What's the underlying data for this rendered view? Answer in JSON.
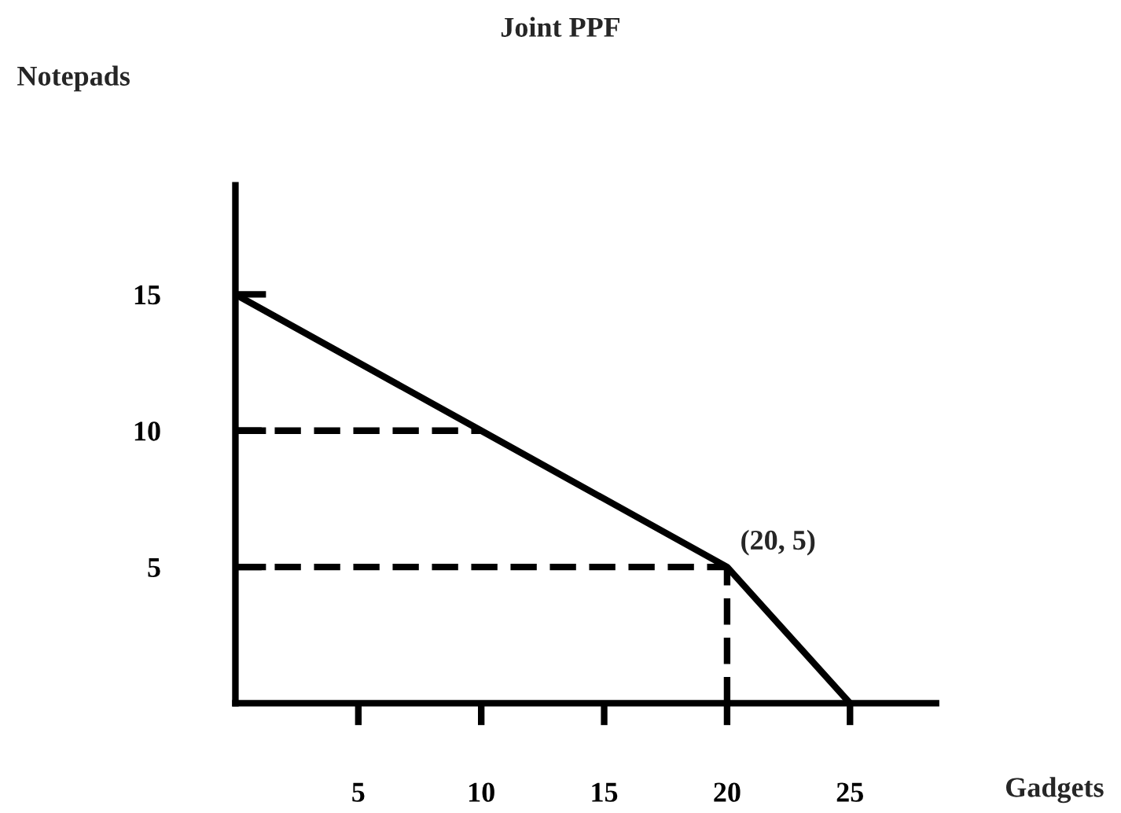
{
  "chart_data": {
    "type": "line",
    "title": "Joint PPF",
    "xlabel": "Gadgets",
    "ylabel": "Notepads",
    "xlim": [
      0,
      28.5
    ],
    "ylim": [
      0,
      19
    ],
    "xticks": [
      5,
      10,
      15,
      20,
      25
    ],
    "yticks": [
      5,
      10,
      15
    ],
    "series": [
      {
        "color": "#000000",
        "x": [
          0,
          10,
          20,
          25
        ],
        "values": [
          15,
          10,
          5,
          0
        ],
        "line_style": "solid"
      },
      {
        "color": "#000000",
        "x": [
          0,
          10
        ],
        "values": [
          10,
          10
        ],
        "line_style": "dashed"
      },
      {
        "color": "#000000",
        "x": [
          0,
          20
        ],
        "values": [
          5,
          5
        ],
        "line_style": "dashed"
      },
      {
        "color": "#000000",
        "x": [
          20,
          20
        ],
        "values": [
          0,
          5
        ],
        "line_style": "dashed"
      }
    ],
    "annotations": [
      {
        "text": "(20, 5)",
        "x": 20,
        "y": 5
      }
    ],
    "grid": false,
    "legend": false,
    "marker": "none"
  }
}
